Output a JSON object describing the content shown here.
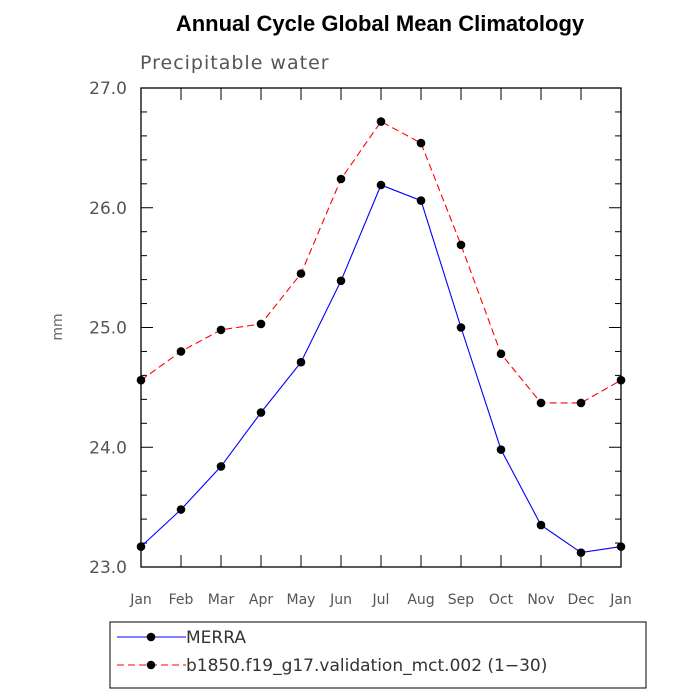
{
  "chart_data": {
    "type": "line",
    "title": "Annual Cycle Global Mean Climatology",
    "subtitle": "Precipitable water",
    "xlabel": "",
    "ylabel": "mm",
    "categories": [
      "Jan",
      "Feb",
      "Mar",
      "Apr",
      "May",
      "Jun",
      "Jul",
      "Aug",
      "Sep",
      "Oct",
      "Nov",
      "Dec",
      "Jan"
    ],
    "ylim": [
      23.0,
      27.0
    ],
    "yticks": [
      "23.0",
      "24.0",
      "25.0",
      "26.0",
      "27.0"
    ],
    "grid": false,
    "legend_position": "bottom",
    "series": [
      {
        "name": "MERRA",
        "color": "#0000ff",
        "dash": "solid",
        "marker": "filled-circle",
        "values": [
          23.17,
          23.48,
          23.84,
          24.29,
          24.71,
          25.39,
          26.19,
          26.06,
          25.0,
          23.98,
          23.35,
          23.12,
          23.17
        ]
      },
      {
        "name": "b1850.f19_g17.validation_mct.002 (1−30)",
        "color": "#ff0000",
        "dash": "dashed",
        "marker": "filled-circle",
        "values": [
          24.56,
          24.8,
          24.98,
          25.03,
          25.45,
          26.24,
          26.72,
          26.54,
          25.69,
          24.78,
          24.37,
          24.37,
          24.56
        ]
      }
    ]
  }
}
